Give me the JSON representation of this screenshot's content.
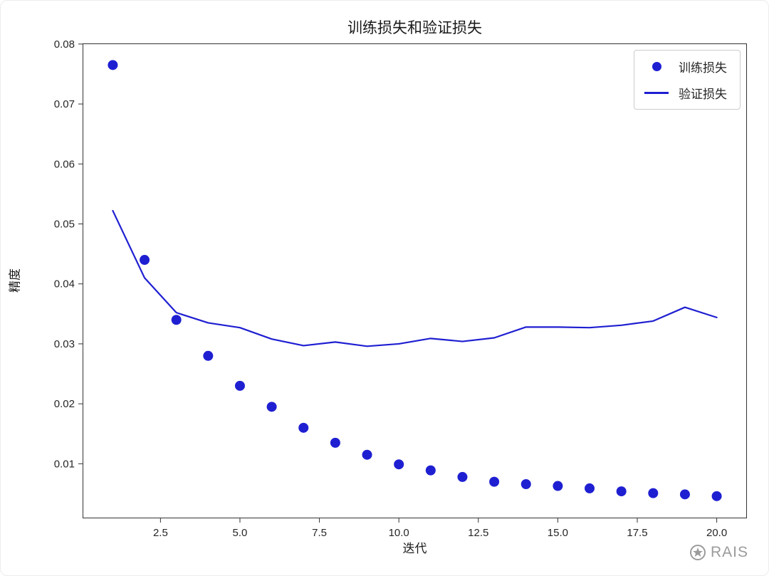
{
  "chart_data": {
    "type": "scatter",
    "title": "训练损失和验证损失",
    "xlabel": "迭代",
    "ylabel": "精度",
    "x": [
      1,
      2,
      3,
      4,
      5,
      6,
      7,
      8,
      9,
      10,
      11,
      12,
      13,
      14,
      15,
      16,
      17,
      18,
      19,
      20
    ],
    "series": [
      {
        "name": "训练损失",
        "type": "scatter",
        "color": "#1f1fd2",
        "values": [
          0.0765,
          0.044,
          0.034,
          0.028,
          0.023,
          0.0195,
          0.016,
          0.0135,
          0.0115,
          0.0099,
          0.0089,
          0.0078,
          0.007,
          0.0066,
          0.0063,
          0.0059,
          0.0054,
          0.0051,
          0.0049,
          0.0046
        ]
      },
      {
        "name": "验证损失",
        "type": "line",
        "color": "#1f1fd2",
        "values": [
          0.0522,
          0.041,
          0.0352,
          0.0335,
          0.0327,
          0.0308,
          0.0297,
          0.0303,
          0.0296,
          0.03,
          0.0309,
          0.0304,
          0.031,
          0.0328,
          0.0328,
          0.0327,
          0.0331,
          0.0338,
          0.0361,
          0.0344
        ]
      }
    ],
    "xlim": [
      0.05,
      20.95
    ],
    "ylim": [
      0.0009,
      0.0801
    ],
    "xticks": [
      2.5,
      5.0,
      7.5,
      10.0,
      12.5,
      15.0,
      17.5,
      20.0
    ],
    "xtick_labels": [
      "2.5",
      "5.0",
      "7.5",
      "10.0",
      "12.5",
      "15.0",
      "17.5",
      "20.0"
    ],
    "yticks": [
      0.01,
      0.02,
      0.03,
      0.04,
      0.05,
      0.06,
      0.07,
      0.08
    ],
    "ytick_labels": [
      "0.01",
      "0.02",
      "0.03",
      "0.04",
      "0.05",
      "0.06",
      "0.07",
      "0.08"
    ],
    "grid": false,
    "legend_position": "upper right",
    "frame_color": "#333333"
  },
  "watermark": {
    "text": "RAIS"
  }
}
